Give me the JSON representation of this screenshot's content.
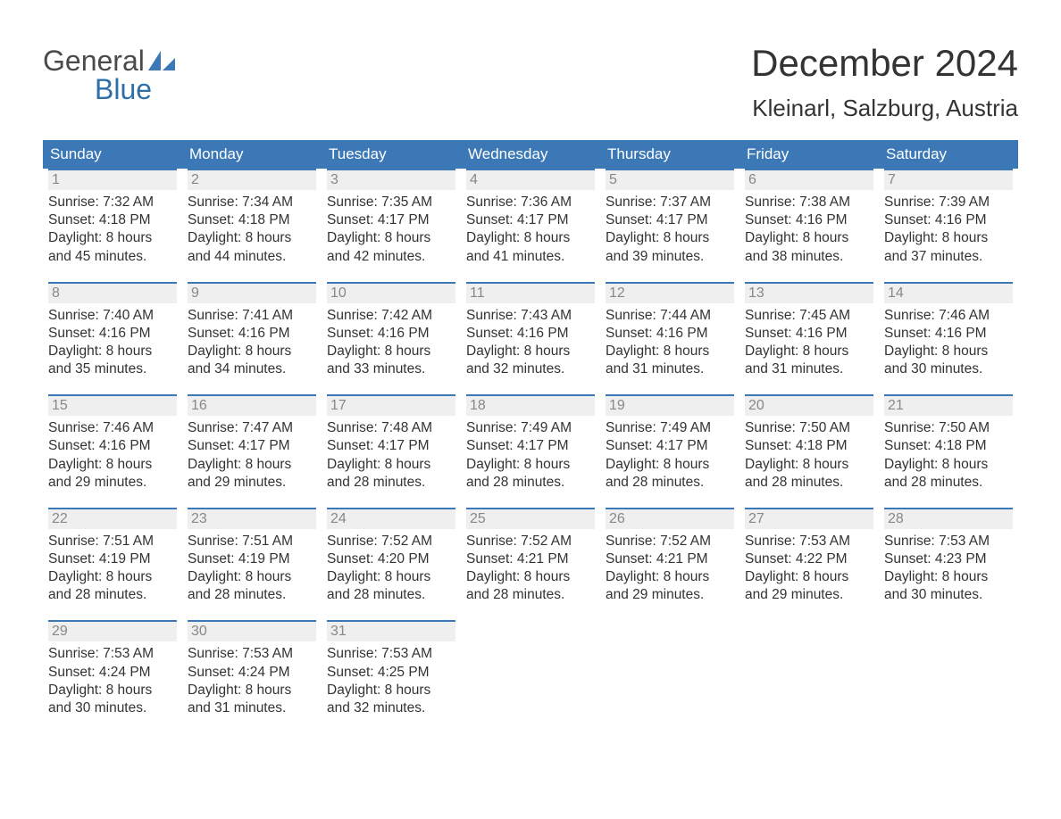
{
  "logo": {
    "line1": "General",
    "line2": "Blue"
  },
  "header": {
    "month_title": "December 2024",
    "location": "Kleinarl, Salzburg, Austria"
  },
  "colors": {
    "brand_blue": "#3b78b5",
    "logo_blue": "#2f6fa7",
    "logo_gray": "#4a4a4a",
    "daynum_bg": "#efefef",
    "daynum_text": "#888888",
    "body_text": "#333333",
    "background": "#ffffff"
  },
  "typography": {
    "title_fontsize": 42,
    "location_fontsize": 26,
    "dayheader_fontsize": 17,
    "body_fontsize": 15.5,
    "font_family": "Arial"
  },
  "calendar": {
    "day_headers": [
      "Sunday",
      "Monday",
      "Tuesday",
      "Wednesday",
      "Thursday",
      "Friday",
      "Saturday"
    ],
    "weeks": [
      [
        {
          "num": "1",
          "sunrise": "Sunrise: 7:32 AM",
          "sunset": "Sunset: 4:18 PM",
          "dl1": "Daylight: 8 hours",
          "dl2": "and 45 minutes."
        },
        {
          "num": "2",
          "sunrise": "Sunrise: 7:34 AM",
          "sunset": "Sunset: 4:18 PM",
          "dl1": "Daylight: 8 hours",
          "dl2": "and 44 minutes."
        },
        {
          "num": "3",
          "sunrise": "Sunrise: 7:35 AM",
          "sunset": "Sunset: 4:17 PM",
          "dl1": "Daylight: 8 hours",
          "dl2": "and 42 minutes."
        },
        {
          "num": "4",
          "sunrise": "Sunrise: 7:36 AM",
          "sunset": "Sunset: 4:17 PM",
          "dl1": "Daylight: 8 hours",
          "dl2": "and 41 minutes."
        },
        {
          "num": "5",
          "sunrise": "Sunrise: 7:37 AM",
          "sunset": "Sunset: 4:17 PM",
          "dl1": "Daylight: 8 hours",
          "dl2": "and 39 minutes."
        },
        {
          "num": "6",
          "sunrise": "Sunrise: 7:38 AM",
          "sunset": "Sunset: 4:16 PM",
          "dl1": "Daylight: 8 hours",
          "dl2": "and 38 minutes."
        },
        {
          "num": "7",
          "sunrise": "Sunrise: 7:39 AM",
          "sunset": "Sunset: 4:16 PM",
          "dl1": "Daylight: 8 hours",
          "dl2": "and 37 minutes."
        }
      ],
      [
        {
          "num": "8",
          "sunrise": "Sunrise: 7:40 AM",
          "sunset": "Sunset: 4:16 PM",
          "dl1": "Daylight: 8 hours",
          "dl2": "and 35 minutes."
        },
        {
          "num": "9",
          "sunrise": "Sunrise: 7:41 AM",
          "sunset": "Sunset: 4:16 PM",
          "dl1": "Daylight: 8 hours",
          "dl2": "and 34 minutes."
        },
        {
          "num": "10",
          "sunrise": "Sunrise: 7:42 AM",
          "sunset": "Sunset: 4:16 PM",
          "dl1": "Daylight: 8 hours",
          "dl2": "and 33 minutes."
        },
        {
          "num": "11",
          "sunrise": "Sunrise: 7:43 AM",
          "sunset": "Sunset: 4:16 PM",
          "dl1": "Daylight: 8 hours",
          "dl2": "and 32 minutes."
        },
        {
          "num": "12",
          "sunrise": "Sunrise: 7:44 AM",
          "sunset": "Sunset: 4:16 PM",
          "dl1": "Daylight: 8 hours",
          "dl2": "and 31 minutes."
        },
        {
          "num": "13",
          "sunrise": "Sunrise: 7:45 AM",
          "sunset": "Sunset: 4:16 PM",
          "dl1": "Daylight: 8 hours",
          "dl2": "and 31 minutes."
        },
        {
          "num": "14",
          "sunrise": "Sunrise: 7:46 AM",
          "sunset": "Sunset: 4:16 PM",
          "dl1": "Daylight: 8 hours",
          "dl2": "and 30 minutes."
        }
      ],
      [
        {
          "num": "15",
          "sunrise": "Sunrise: 7:46 AM",
          "sunset": "Sunset: 4:16 PM",
          "dl1": "Daylight: 8 hours",
          "dl2": "and 29 minutes."
        },
        {
          "num": "16",
          "sunrise": "Sunrise: 7:47 AM",
          "sunset": "Sunset: 4:17 PM",
          "dl1": "Daylight: 8 hours",
          "dl2": "and 29 minutes."
        },
        {
          "num": "17",
          "sunrise": "Sunrise: 7:48 AM",
          "sunset": "Sunset: 4:17 PM",
          "dl1": "Daylight: 8 hours",
          "dl2": "and 28 minutes."
        },
        {
          "num": "18",
          "sunrise": "Sunrise: 7:49 AM",
          "sunset": "Sunset: 4:17 PM",
          "dl1": "Daylight: 8 hours",
          "dl2": "and 28 minutes."
        },
        {
          "num": "19",
          "sunrise": "Sunrise: 7:49 AM",
          "sunset": "Sunset: 4:17 PM",
          "dl1": "Daylight: 8 hours",
          "dl2": "and 28 minutes."
        },
        {
          "num": "20",
          "sunrise": "Sunrise: 7:50 AM",
          "sunset": "Sunset: 4:18 PM",
          "dl1": "Daylight: 8 hours",
          "dl2": "and 28 minutes."
        },
        {
          "num": "21",
          "sunrise": "Sunrise: 7:50 AM",
          "sunset": "Sunset: 4:18 PM",
          "dl1": "Daylight: 8 hours",
          "dl2": "and 28 minutes."
        }
      ],
      [
        {
          "num": "22",
          "sunrise": "Sunrise: 7:51 AM",
          "sunset": "Sunset: 4:19 PM",
          "dl1": "Daylight: 8 hours",
          "dl2": "and 28 minutes."
        },
        {
          "num": "23",
          "sunrise": "Sunrise: 7:51 AM",
          "sunset": "Sunset: 4:19 PM",
          "dl1": "Daylight: 8 hours",
          "dl2": "and 28 minutes."
        },
        {
          "num": "24",
          "sunrise": "Sunrise: 7:52 AM",
          "sunset": "Sunset: 4:20 PM",
          "dl1": "Daylight: 8 hours",
          "dl2": "and 28 minutes."
        },
        {
          "num": "25",
          "sunrise": "Sunrise: 7:52 AM",
          "sunset": "Sunset: 4:21 PM",
          "dl1": "Daylight: 8 hours",
          "dl2": "and 28 minutes."
        },
        {
          "num": "26",
          "sunrise": "Sunrise: 7:52 AM",
          "sunset": "Sunset: 4:21 PM",
          "dl1": "Daylight: 8 hours",
          "dl2": "and 29 minutes."
        },
        {
          "num": "27",
          "sunrise": "Sunrise: 7:53 AM",
          "sunset": "Sunset: 4:22 PM",
          "dl1": "Daylight: 8 hours",
          "dl2": "and 29 minutes."
        },
        {
          "num": "28",
          "sunrise": "Sunrise: 7:53 AM",
          "sunset": "Sunset: 4:23 PM",
          "dl1": "Daylight: 8 hours",
          "dl2": "and 30 minutes."
        }
      ],
      [
        {
          "num": "29",
          "sunrise": "Sunrise: 7:53 AM",
          "sunset": "Sunset: 4:24 PM",
          "dl1": "Daylight: 8 hours",
          "dl2": "and 30 minutes."
        },
        {
          "num": "30",
          "sunrise": "Sunrise: 7:53 AM",
          "sunset": "Sunset: 4:24 PM",
          "dl1": "Daylight: 8 hours",
          "dl2": "and 31 minutes."
        },
        {
          "num": "31",
          "sunrise": "Sunrise: 7:53 AM",
          "sunset": "Sunset: 4:25 PM",
          "dl1": "Daylight: 8 hours",
          "dl2": "and 32 minutes."
        },
        null,
        null,
        null,
        null
      ]
    ]
  }
}
